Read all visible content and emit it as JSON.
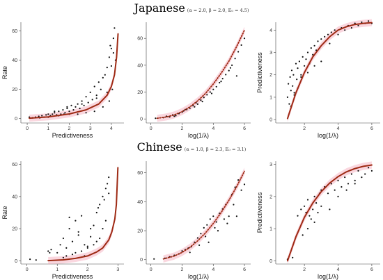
{
  "figure": {
    "rows": [
      {
        "title": "Japanese",
        "params": "(α = 2.0, β = 2.0, E₀ = 4.5)"
      },
      {
        "title": "Chinese",
        "params": "(α = 1.0, β = 2.3, E₀ = 3.1)"
      }
    ],
    "colors": {
      "fit": "#9e2a14",
      "band": "#f4a6b8",
      "points": "#111111"
    }
  },
  "chart_data": [
    {
      "type": "scatter",
      "language": "Japanese",
      "xlabel": "Predictiveness",
      "ylabel": "Rate",
      "xlim": [
        -0.3,
        4.6
      ],
      "ylim": [
        -3,
        66
      ],
      "xticks": [
        0,
        1,
        2,
        3,
        4
      ],
      "yticks": [
        0,
        20,
        40,
        60
      ],
      "x_tick_labels": [
        "0",
        "1",
        "2",
        "3",
        "4"
      ],
      "y_tick_labels": [
        "0",
        "20",
        "40",
        "60"
      ],
      "fit": {
        "style": "solid",
        "x": [
          0.1,
          1.0,
          2.0,
          2.8,
          3.4,
          3.8,
          4.0,
          4.15,
          4.25,
          4.32
        ],
        "y": [
          0.3,
          1.2,
          3.2,
          6.0,
          10.0,
          16.0,
          22.0,
          30.0,
          42.0,
          58.0
        ]
      },
      "points": {
        "x": [
          0.1,
          0.25,
          0.4,
          0.55,
          0.7,
          0.8,
          0.9,
          1.0,
          1.1,
          1.2,
          1.3,
          1.4,
          1.5,
          1.6,
          1.7,
          1.8,
          1.9,
          2.0,
          2.1,
          2.2,
          2.3,
          2.4,
          2.5,
          2.6,
          2.7,
          2.8,
          2.9,
          3.0,
          3.1,
          3.2,
          3.3,
          3.4,
          3.5,
          3.6,
          3.7,
          3.8,
          3.9,
          4.0,
          4.1,
          4.15,
          4.2,
          0.6,
          1.0,
          1.5,
          2.0,
          2.4,
          2.8,
          3.2,
          3.6,
          3.9,
          4.05,
          1.3,
          1.9,
          2.6,
          3.3,
          3.8,
          4.0,
          4.1,
          3.95,
          1.75
        ],
        "y": [
          1,
          0.5,
          1,
          1.5,
          2,
          1,
          2.5,
          3,
          2,
          3,
          4,
          2.5,
          5,
          3,
          6,
          4,
          7,
          5,
          9,
          6,
          8,
          10,
          7,
          12,
          9,
          15,
          11,
          18,
          13,
          22,
          16,
          25,
          20,
          28,
          30,
          35,
          42,
          48,
          55,
          62,
          40,
          0.5,
          1,
          2,
          3,
          3,
          4,
          5,
          8,
          12,
          20,
          5,
          8,
          10,
          14,
          18,
          36,
          45,
          50,
          3
        ]
      }
    },
    {
      "type": "scatter",
      "language": "Japanese",
      "xlabel": "log(1/λ)",
      "ylabel": "",
      "xlim": [
        -0.3,
        6.4
      ],
      "ylim": [
        -3,
        72
      ],
      "xticks": [
        0,
        2,
        4,
        6
      ],
      "yticks": [
        0,
        20,
        40,
        60
      ],
      "x_tick_labels": [
        "0",
        "2",
        "4",
        "6"
      ],
      "y_tick_labels": [
        "0",
        "20",
        "40",
        "60"
      ],
      "fit": {
        "style": "dotted",
        "x": [
          0.4,
          1.0,
          1.5,
          2.0,
          2.5,
          3.0,
          3.5,
          4.0,
          4.5,
          5.0,
          5.5,
          6.0
        ],
        "y": [
          0.5,
          1.5,
          3.0,
          5.5,
          9.0,
          13.5,
          19.0,
          26.0,
          34.0,
          43.0,
          54.0,
          66.0
        ]
      },
      "points": {
        "x": [
          0.3,
          0.8,
          1.0,
          1.2,
          1.4,
          1.6,
          1.8,
          2.0,
          2.1,
          2.3,
          2.5,
          2.7,
          2.9,
          3.0,
          3.2,
          3.4,
          3.6,
          3.8,
          4.0,
          4.2,
          4.4,
          4.6,
          4.8,
          5.0,
          5.2,
          5.4,
          5.6,
          5.8,
          6.0,
          1.5,
          2.2,
          2.8,
          3.3,
          3.9,
          4.5,
          5.1,
          5.5
        ],
        "y": [
          0.5,
          1,
          2,
          1.5,
          3,
          2.5,
          4,
          5,
          6,
          7,
          8,
          10,
          12,
          11,
          14,
          16,
          18,
          20,
          22,
          24,
          27,
          30,
          33,
          36,
          40,
          45,
          50,
          55,
          60,
          2,
          7,
          9,
          13,
          19,
          28,
          38,
          32
        ]
      }
    },
    {
      "type": "scatter",
      "language": "Japanese",
      "xlabel": "log(1/λ)",
      "ylabel": "Predictiveness",
      "xlim": [
        0.3,
        6.5
      ],
      "ylim": [
        -0.15,
        4.35
      ],
      "xticks": [
        2,
        4,
        6
      ],
      "yticks": [
        0,
        1,
        2,
        3,
        4
      ],
      "x_tick_labels": [
        "2",
        "4",
        "6"
      ],
      "y_tick_labels": [
        "0",
        "1",
        "2",
        "3",
        "4"
      ],
      "fit": {
        "style": "solid",
        "x": [
          1.0,
          1.5,
          2.0,
          2.5,
          3.0,
          3.5,
          4.0,
          4.5,
          5.0,
          5.5,
          6.0
        ],
        "y": [
          0.05,
          1.2,
          2.1,
          2.8,
          3.3,
          3.7,
          4.0,
          4.15,
          4.25,
          4.3,
          4.33
        ]
      },
      "points": {
        "x": [
          1.0,
          1.05,
          1.1,
          1.15,
          1.2,
          1.25,
          1.3,
          1.35,
          1.4,
          1.5,
          1.55,
          1.6,
          1.7,
          1.8,
          1.9,
          2.0,
          2.1,
          2.2,
          2.3,
          2.4,
          2.5,
          2.6,
          2.7,
          2.8,
          2.9,
          3.0,
          3.2,
          3.4,
          3.6,
          3.8,
          4.0,
          4.2,
          4.4,
          4.6,
          4.8,
          5.0,
          5.2,
          5.4,
          5.6,
          5.8,
          6.0,
          1.2,
          1.4,
          1.6,
          1.8,
          2.2,
          2.6,
          3.0,
          3.5
        ],
        "y": [
          1.0,
          1.6,
          0.7,
          1.9,
          1.3,
          2.2,
          1.5,
          2.0,
          1.2,
          2.5,
          1.8,
          2.3,
          2.6,
          1.9,
          2.8,
          2.4,
          2.7,
          3.0,
          2.5,
          3.2,
          2.9,
          3.3,
          3.1,
          3.5,
          3.2,
          3.6,
          3.7,
          3.8,
          3.9,
          4.0,
          3.8,
          4.1,
          4.0,
          4.2,
          4.1,
          4.3,
          4.2,
          4.35,
          4.3,
          4.4,
          4.3,
          0.6,
          1.1,
          1.4,
          2.0,
          2.1,
          2.4,
          2.6,
          3.4
        ]
      }
    },
    {
      "type": "scatter",
      "language": "Chinese",
      "xlabel": "Predictiveness",
      "ylabel": "Rate",
      "xlim": [
        -0.2,
        3.2
      ],
      "ylim": [
        -2,
        62
      ],
      "xticks": [
        0,
        1,
        2,
        3
      ],
      "yticks": [
        0,
        20,
        40,
        60
      ],
      "x_tick_labels": [
        "0",
        "1",
        "2",
        "3"
      ],
      "y_tick_labels": [
        "0",
        "20",
        "40",
        "60"
      ],
      "fit": {
        "style": "solid",
        "x": [
          0.7,
          1.2,
          1.6,
          2.0,
          2.3,
          2.5,
          2.7,
          2.8,
          2.9,
          2.95,
          3.0
        ],
        "y": [
          0.1,
          0.6,
          1.5,
          3.0,
          5.5,
          8.0,
          13.0,
          18.0,
          26.0,
          35.0,
          58.0
        ]
      },
      "points": {
        "x": [
          0.1,
          0.3,
          0.7,
          0.8,
          1.0,
          1.1,
          1.2,
          1.3,
          1.4,
          1.5,
          1.6,
          1.7,
          1.8,
          1.9,
          2.0,
          2.1,
          2.2,
          2.3,
          2.4,
          2.5,
          2.6,
          2.7,
          1.2,
          1.3,
          1.5,
          1.6,
          1.8,
          1.9,
          2.0,
          2.2,
          2.3,
          2.4,
          2.5,
          2.6,
          2.7,
          1.4,
          1.7,
          2.1,
          2.35,
          2.55,
          2.65,
          0.75
        ],
        "y": [
          1,
          0.5,
          6,
          7,
          5,
          10,
          14,
          8,
          20,
          12,
          25,
          18,
          28,
          10,
          9,
          15,
          22,
          30,
          35,
          40,
          45,
          52,
          2,
          3,
          4,
          5,
          6,
          3,
          8,
          10,
          12,
          14,
          20,
          25,
          42,
          27,
          16,
          20,
          33,
          38,
          48,
          5
        ]
      }
    },
    {
      "type": "scatter",
      "language": "Chinese",
      "xlabel": "log(1/λ)",
      "ylabel": "",
      "xlim": [
        -0.3,
        6.4
      ],
      "ylim": [
        -3,
        68
      ],
      "xticks": [
        0,
        2,
        4,
        6
      ],
      "yticks": [
        0,
        20,
        40,
        60
      ],
      "x_tick_labels": [
        "0",
        "2",
        "4",
        "6"
      ],
      "y_tick_labels": [
        "0",
        "20",
        "40",
        "60"
      ],
      "fit": {
        "style": "dotted",
        "x": [
          0.8,
          1.5,
          2.0,
          2.5,
          3.0,
          3.5,
          4.0,
          4.5,
          5.0,
          5.5,
          6.0
        ],
        "y": [
          0.5,
          2.5,
          5.0,
          8.5,
          13.0,
          18.5,
          25.0,
          32.5,
          41.0,
          50.5,
          61.0
        ]
      },
      "points": {
        "x": [
          0.2,
          0.9,
          1.2,
          1.5,
          1.8,
          2.0,
          2.2,
          2.4,
          2.6,
          2.8,
          3.0,
          3.2,
          3.4,
          3.6,
          3.8,
          4.0,
          4.2,
          4.4,
          4.6,
          4.8,
          5.0,
          5.2,
          5.4,
          5.6,
          5.8,
          6.0,
          2.5,
          3.1,
          3.7,
          4.3,
          4.9,
          5.5,
          3.5,
          4.1,
          4.7,
          5.3
        ],
        "y": [
          0.5,
          1,
          2,
          3,
          4,
          6,
          7,
          8,
          9,
          12,
          15,
          18,
          22,
          24,
          28,
          30,
          26,
          32,
          35,
          38,
          30,
          45,
          50,
          55,
          48,
          52,
          5,
          10,
          12,
          20,
          25,
          30,
          16,
          22,
          28,
          38
        ]
      }
    },
    {
      "type": "scatter",
      "language": "Chinese",
      "xlabel": "log(1/λ)",
      "ylabel": "Predictiveness",
      "xlim": [
        0.3,
        6.5
      ],
      "ylim": [
        -0.1,
        3.1
      ],
      "xticks": [
        2,
        4,
        6
      ],
      "yticks": [
        0,
        1,
        2,
        3
      ],
      "x_tick_labels": [
        "2",
        "4",
        "6"
      ],
      "y_tick_labels": [
        "0",
        "1",
        "2",
        "3"
      ],
      "fit": {
        "style": "solid",
        "x": [
          1.0,
          1.5,
          2.0,
          2.5,
          3.0,
          3.5,
          4.0,
          4.5,
          5.0,
          5.5,
          6.0
        ],
        "y": [
          0.0,
          0.75,
          1.35,
          1.8,
          2.15,
          2.42,
          2.62,
          2.77,
          2.87,
          2.94,
          2.98
        ]
      },
      "points": {
        "x": [
          1.0,
          1.3,
          1.6,
          1.8,
          1.9,
          2.0,
          2.1,
          2.2,
          2.3,
          2.4,
          2.5,
          2.6,
          2.7,
          2.8,
          2.9,
          3.0,
          3.2,
          3.4,
          3.6,
          3.8,
          4.0,
          4.2,
          4.4,
          4.6,
          4.8,
          5.0,
          5.2,
          5.4,
          5.6,
          5.8,
          6.0,
          2.2,
          2.6,
          3.0,
          3.5,
          4.0,
          4.5,
          5.0
        ],
        "y": [
          0.05,
          0.1,
          1.4,
          1.6,
          0.8,
          1.7,
          1.5,
          1.9,
          1.4,
          1.3,
          1.6,
          2.0,
          1.8,
          1.5,
          2.1,
          2.2,
          2.3,
          2.1,
          2.4,
          2.2,
          2.5,
          2.3,
          2.6,
          2.4,
          2.7,
          2.5,
          2.8,
          2.6,
          2.7,
          2.9,
          2.8,
          1.0,
          1.2,
          1.7,
          1.6,
          2.0,
          2.2,
          2.4
        ]
      }
    }
  ]
}
